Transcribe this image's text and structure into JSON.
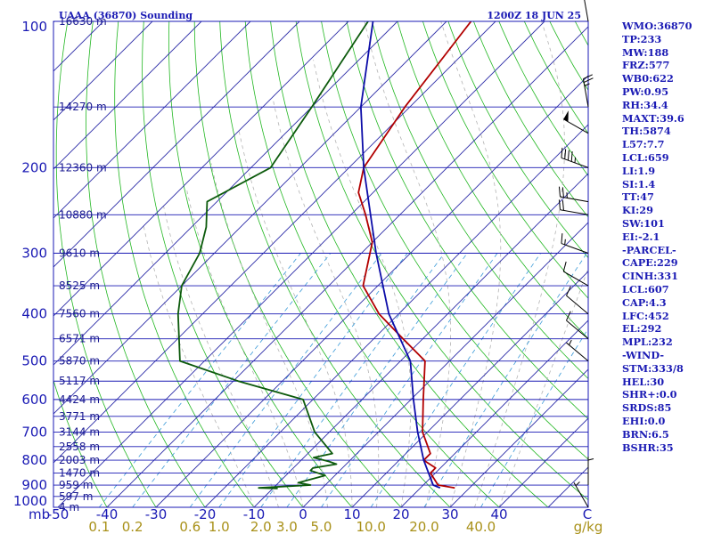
{
  "title_left": "UAAA (36870) Sounding",
  "title_right": "1200Z 18 JUN 25",
  "colors": {
    "isobar": "#1a1ab4",
    "isotherm": "#2a2aa6",
    "dry_adiabat": "#22b722",
    "moist_adiabat": "#b4b4b4",
    "mixing_ratio": "#3a9ad8",
    "temperature": "#b20000",
    "dewpoint": "#0c5a0c",
    "parcel": "#0c0ca8",
    "wind": "#000000",
    "text": "#1a1ab4",
    "mixing_label": "#a89018"
  },
  "pressure_label_unit": "mb",
  "height_unit": "m",
  "mixing_ratio_unit": "g/kg",
  "chart_data": {
    "type": "line",
    "subtype": "skew-T log-P",
    "pressure_ticks": [
      100,
      200,
      300,
      400,
      500,
      600,
      700,
      800,
      900,
      1000
    ],
    "temperature_ticks": [
      -50,
      -40,
      -30,
      -20,
      -10,
      0,
      10,
      20,
      30,
      40
    ],
    "temperature_axis_end_label": "C",
    "mixing_ratio_ticks": [
      "0.1",
      "0.2",
      "0.6",
      "1.0",
      "2.0",
      "3.0",
      "5.0",
      "10.0",
      "20.0",
      "40.0"
    ],
    "height_labels": [
      {
        "p": 100,
        "h": "16630"
      },
      {
        "p": 150,
        "h": "14270"
      },
      {
        "p": 200,
        "h": "12360"
      },
      {
        "p": 250,
        "h": "10880"
      },
      {
        "p": 300,
        "h": "9610"
      },
      {
        "p": 350,
        "h": "8525"
      },
      {
        "p": 400,
        "h": "7560"
      },
      {
        "p": 450,
        "h": "6571"
      },
      {
        "p": 500,
        "h": "5870"
      },
      {
        "p": 550,
        "h": "5117"
      },
      {
        "p": 600,
        "h": "4424"
      },
      {
        "p": 650,
        "h": "3771"
      },
      {
        "p": 700,
        "h": "3144"
      },
      {
        "p": 750,
        "h": "2558"
      },
      {
        "p": 800,
        "h": "2003"
      },
      {
        "p": 850,
        "h": "1470"
      },
      {
        "p": 900,
        "h": "959"
      },
      {
        "p": 950,
        "h": "597"
      },
      {
        "p": 1000,
        "h": "4"
      }
    ],
    "series": [
      {
        "key": "temperature",
        "points": [
          {
            "p": 100,
            "t": -65
          },
          {
            "p": 150,
            "t": -61
          },
          {
            "p": 200,
            "t": -57
          },
          {
            "p": 225,
            "t": -53
          },
          {
            "p": 250,
            "t": -47
          },
          {
            "p": 285,
            "t": -40
          },
          {
            "p": 350,
            "t": -33
          },
          {
            "p": 400,
            "t": -24
          },
          {
            "p": 450,
            "t": -14
          },
          {
            "p": 500,
            "t": -5
          },
          {
            "p": 600,
            "t": 2.5
          },
          {
            "p": 700,
            "t": 9
          },
          {
            "p": 775,
            "t": 15
          },
          {
            "p": 800,
            "t": 15
          },
          {
            "p": 830,
            "t": 19
          },
          {
            "p": 850,
            "t": 19
          },
          {
            "p": 900,
            "t": 23
          },
          {
            "p": 912,
            "t": 27
          }
        ]
      },
      {
        "key": "dewpoint",
        "points": [
          {
            "p": 100,
            "t": -86
          },
          {
            "p": 150,
            "t": -80
          },
          {
            "p": 200,
            "t": -76
          },
          {
            "p": 235,
            "t": -82
          },
          {
            "p": 265,
            "t": -77
          },
          {
            "p": 300,
            "t": -73
          },
          {
            "p": 350,
            "t": -70
          },
          {
            "p": 400,
            "t": -65
          },
          {
            "p": 500,
            "t": -55
          },
          {
            "p": 550,
            "t": -39
          },
          {
            "p": 600,
            "t": -22
          },
          {
            "p": 700,
            "t": -13
          },
          {
            "p": 775,
            "t": -5
          },
          {
            "p": 790,
            "t": -8
          },
          {
            "p": 805,
            "t": -4
          },
          {
            "p": 815,
            "t": -2
          },
          {
            "p": 830,
            "t": -6
          },
          {
            "p": 840,
            "t": -6
          },
          {
            "p": 860,
            "t": -2
          },
          {
            "p": 890,
            "t": -6
          },
          {
            "p": 900,
            "t": -3
          },
          {
            "p": 912,
            "t": -13
          },
          {
            "p": 915,
            "t": -9
          }
        ]
      },
      {
        "key": "parcel",
        "points": [
          {
            "p": 100,
            "t": -85
          },
          {
            "p": 150,
            "t": -70
          },
          {
            "p": 200,
            "t": -57
          },
          {
            "p": 300,
            "t": -37
          },
          {
            "p": 400,
            "t": -22
          },
          {
            "p": 500,
            "t": -8
          },
          {
            "p": 600,
            "t": 0.5
          },
          {
            "p": 700,
            "t": 8
          },
          {
            "p": 800,
            "t": 15
          },
          {
            "p": 900,
            "t": 22
          },
          {
            "p": 912,
            "t": 24
          }
        ]
      }
    ],
    "wind_barbs": [
      {
        "p": 100,
        "dir": 350,
        "speed": 20
      },
      {
        "p": 150,
        "dir": 350,
        "speed": 25
      },
      {
        "p": 170,
        "dir": 300,
        "speed": 50
      },
      {
        "p": 200,
        "dir": 290,
        "speed": 45
      },
      {
        "p": 235,
        "dir": 280,
        "speed": 25
      },
      {
        "p": 250,
        "dir": 280,
        "speed": 20
      },
      {
        "p": 300,
        "dir": 290,
        "speed": 15
      },
      {
        "p": 350,
        "dir": 300,
        "speed": 10
      },
      {
        "p": 400,
        "dir": 310,
        "speed": 10
      },
      {
        "p": 450,
        "dir": 310,
        "speed": 10
      },
      {
        "p": 500,
        "dir": 310,
        "speed": 5
      },
      {
        "p": 900,
        "dir": 0,
        "speed": 5
      },
      {
        "p": 1000,
        "dir": 330,
        "speed": 5
      }
    ]
  },
  "indices": [
    "WMO:36870",
    "TP:233",
    "MW:188",
    "FRZ:577",
    "WB0:622",
    "PW:0.95",
    "RH:34.4",
    "MAXT:39.6",
    "TH:5874",
    "L57:7.7",
    "LCL:659",
    "LI:1.9",
    "SI:1.4",
    "TT:47",
    "KI:29",
    "SW:101",
    "EI:-2.1",
    "-PARCEL-",
    "CAPE:229",
    "CINH:331",
    "LCL:607",
    "CAP:4.3",
    "LFC:452",
    "EL:292",
    "MPL:232",
    "-WIND-",
    "STM:333/8",
    "HEL:30",
    "SHR+:0.0",
    "SRDS:85",
    "EHI:0.0",
    "BRN:6.5",
    "BSHR:35"
  ]
}
